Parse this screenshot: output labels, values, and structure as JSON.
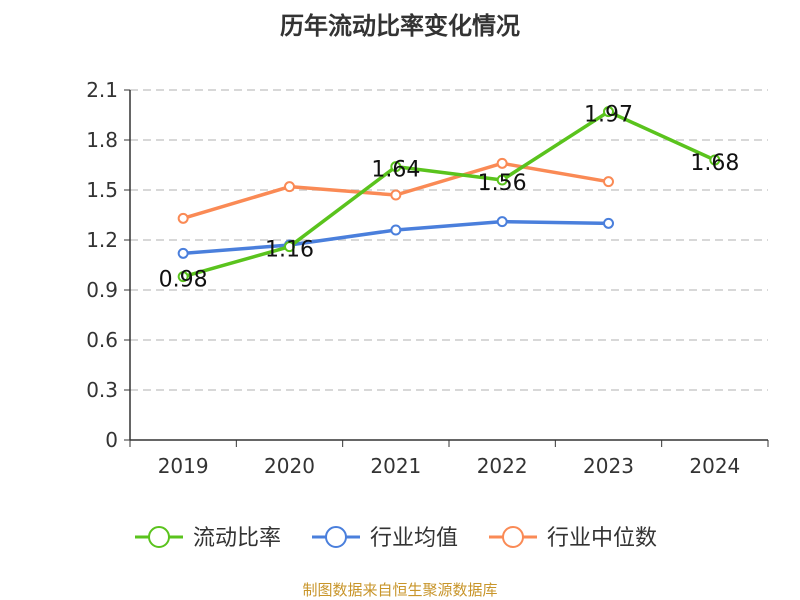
{
  "chart_data": {
    "type": "line",
    "title": "历年流动比率变化情况",
    "categories": [
      "2019",
      "2020",
      "2021",
      "2022",
      "2023",
      "2024"
    ],
    "ylim": [
      0,
      2.1
    ],
    "yticks": [
      "0",
      "0.3",
      "0.6",
      "0.9",
      "1.2",
      "1.5",
      "1.8",
      "2.1"
    ],
    "grid": true,
    "legend_position": "bottom",
    "series": [
      {
        "name": "流动比率",
        "color": "#5ac31d",
        "values": [
          0.98,
          1.16,
          1.64,
          1.56,
          1.97,
          1.68
        ],
        "labels": [
          "0.98",
          "1.16",
          "1.64",
          "1.56",
          "1.97",
          "1.68"
        ]
      },
      {
        "name": "行业均值",
        "color": "#4a7fdc",
        "values": [
          1.12,
          1.17,
          1.26,
          1.31,
          1.3,
          null
        ]
      },
      {
        "name": "行业中位数",
        "color": "#fa8a55",
        "values": [
          1.33,
          1.52,
          1.47,
          1.66,
          1.55,
          null
        ]
      }
    ]
  },
  "source": "制图数据来自恒生聚源数据库"
}
